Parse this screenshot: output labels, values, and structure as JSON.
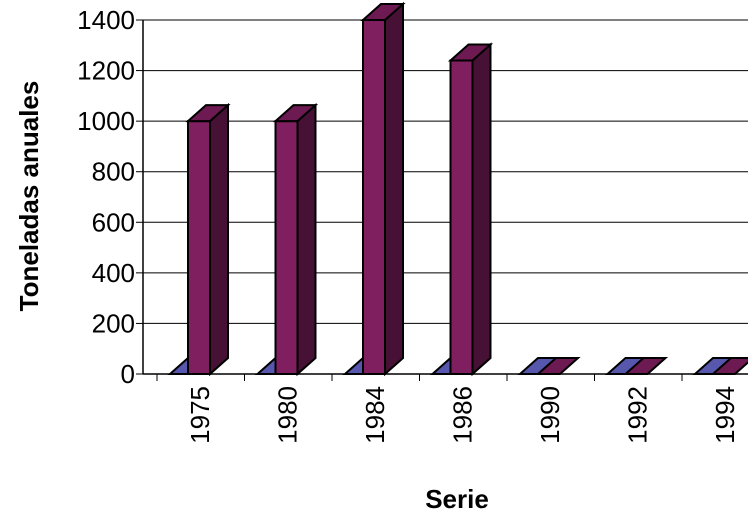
{
  "chart_data": {
    "type": "bar",
    "three_d": true,
    "xlabel": "Serie",
    "ylabel": "Toneladas anuales",
    "categories": [
      "1975",
      "1980",
      "1984",
      "1986",
      "1990",
      "1992",
      "1994"
    ],
    "series": [
      {
        "values": [
          0,
          0,
          0,
          0,
          0,
          0,
          0
        ]
      },
      {
        "values": [
          1000,
          1000,
          1400,
          1240,
          0,
          0,
          0
        ]
      }
    ],
    "series_colors": [
      "#6666cc",
      "#7f1f5f"
    ],
    "ylim": [
      0,
      1400
    ],
    "yticks": [
      0,
      200,
      400,
      600,
      800,
      1000,
      1200,
      1400
    ],
    "grid": true,
    "legend": "none"
  }
}
